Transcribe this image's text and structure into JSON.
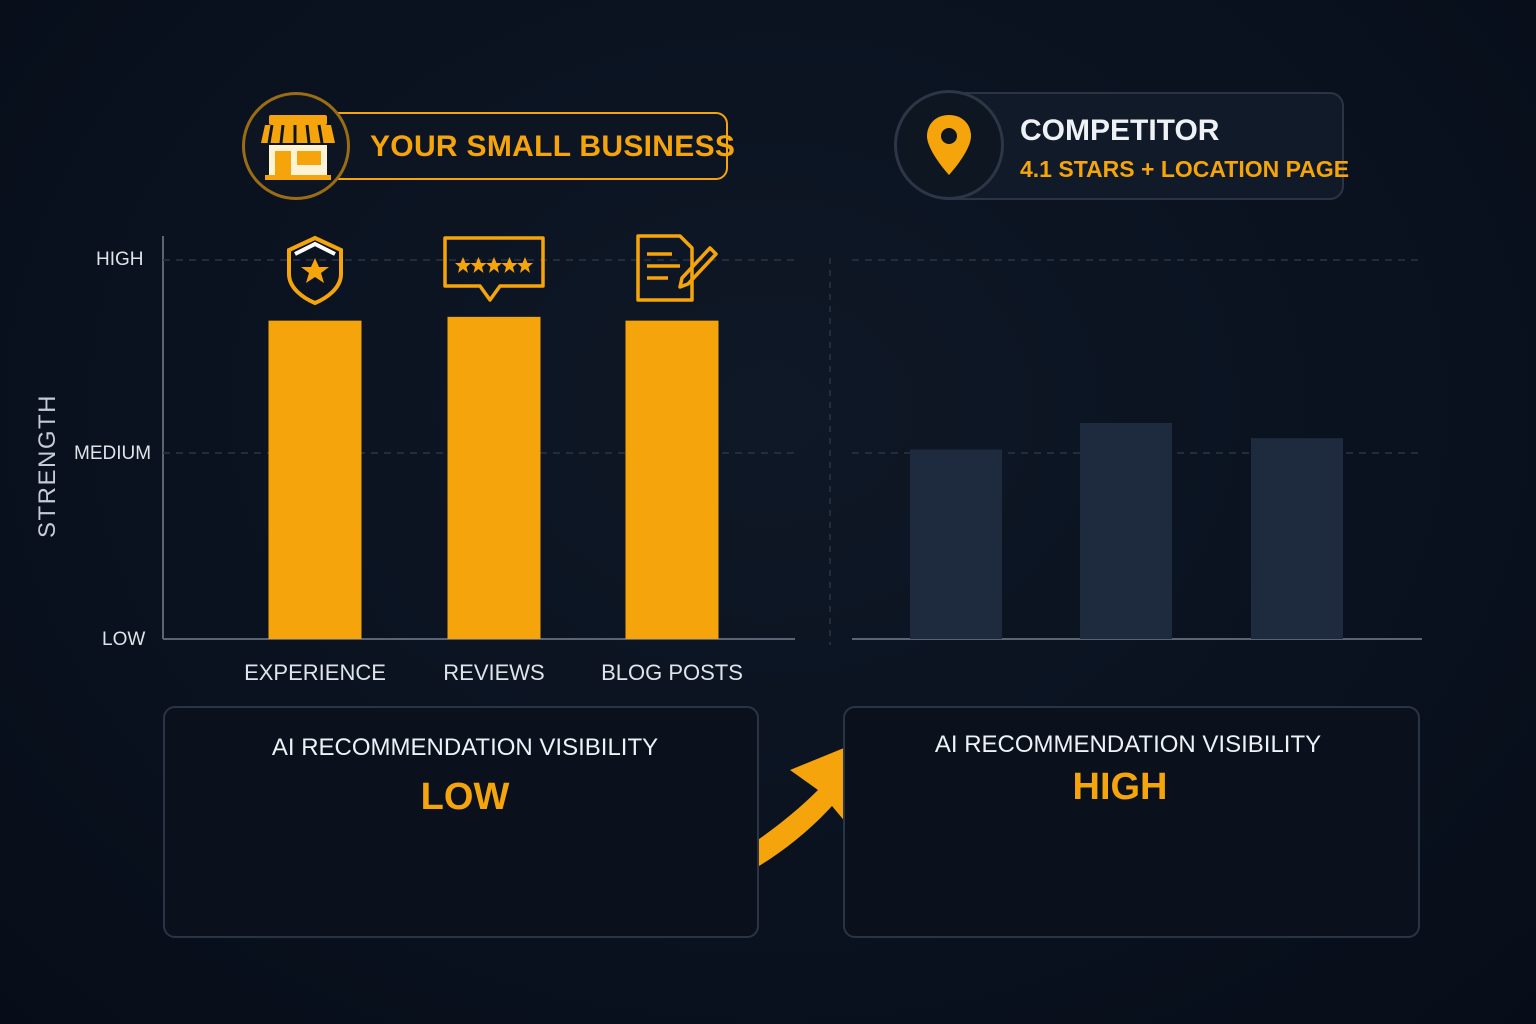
{
  "colors": {
    "accent": "#f5a50b",
    "competitor_bar": "#1e2a3d",
    "background": "#0a1220",
    "grid": "#2a3445"
  },
  "header_left": {
    "title": "YOUR SMALL BUSINESS",
    "icon": "storefront-icon"
  },
  "header_right": {
    "title": "COMPETITOR",
    "subtitle": "4.1 STARS + LOCATION PAGE",
    "icon": "location-pin-icon"
  },
  "chart_data": [
    {
      "type": "bar",
      "series": [
        {
          "values": [
            0.84,
            0.85,
            0.84
          ]
        }
      ],
      "categories": [
        "EXPERIENCE",
        "REVIEWS",
        "BLOG POSTS"
      ],
      "category_icons": [
        "shield-star-icon",
        "review-stars-icon",
        "document-edit-icon"
      ],
      "ylabel": "STRENGTH",
      "yticks": [
        "LOW",
        "MEDIUM",
        "HIGH"
      ],
      "ylim": [
        0,
        1
      ],
      "grid": true
    },
    {
      "type": "bar",
      "series": [
        {
          "values": [
            0.5,
            0.57,
            0.53
          ]
        }
      ],
      "ylim": [
        0,
        1
      ],
      "grid": true
    }
  ],
  "visibility": {
    "left": {
      "title": "AI RECOMMENDATION VISIBILITY",
      "value": "LOW",
      "level": 0.15
    },
    "right": {
      "title": "AI RECOMMENDATION VISIBILITY",
      "value": "HIGH",
      "level": 0.5
    }
  }
}
